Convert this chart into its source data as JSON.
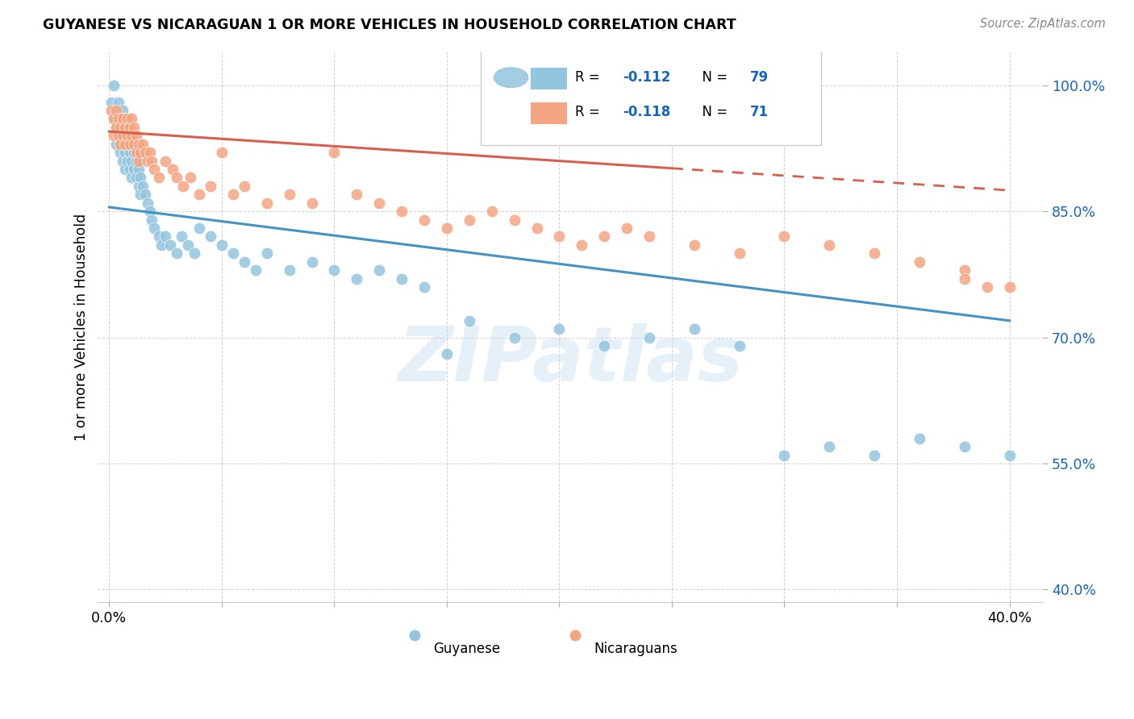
{
  "title": "GUYANESE VS NICARAGUAN 1 OR MORE VEHICLES IN HOUSEHOLD CORRELATION CHART",
  "source": "Source: ZipAtlas.com",
  "ylabel": "1 or more Vehicles in Household",
  "watermark": "ZIPatlas",
  "guyanese_color": "#92c5de",
  "nicaraguan_color": "#f4a582",
  "trendline_guyanese_color": "#4393c3",
  "trendline_nicaraguan_color": "#d6604d",
  "blue_label_color": "#1565C0",
  "legend_r1_r": "-0.112",
  "legend_r1_n": "79",
  "legend_r2_r": "-0.118",
  "legend_r2_n": "71",
  "guyanese_x": [
    0.001,
    0.002,
    0.002,
    0.003,
    0.003,
    0.003,
    0.004,
    0.004,
    0.004,
    0.005,
    0.005,
    0.005,
    0.006,
    0.006,
    0.006,
    0.006,
    0.007,
    0.007,
    0.007,
    0.007,
    0.008,
    0.008,
    0.008,
    0.009,
    0.009,
    0.009,
    0.01,
    0.01,
    0.01,
    0.011,
    0.011,
    0.012,
    0.012,
    0.013,
    0.013,
    0.014,
    0.014,
    0.015,
    0.016,
    0.017,
    0.018,
    0.019,
    0.02,
    0.022,
    0.023,
    0.025,
    0.027,
    0.03,
    0.032,
    0.035,
    0.038,
    0.04,
    0.045,
    0.05,
    0.055,
    0.06,
    0.065,
    0.07,
    0.08,
    0.09,
    0.1,
    0.11,
    0.12,
    0.13,
    0.14,
    0.15,
    0.16,
    0.18,
    0.2,
    0.22,
    0.24,
    0.26,
    0.28,
    0.3,
    0.32,
    0.34,
    0.36,
    0.38,
    0.4
  ],
  "guyanese_y": [
    0.98,
    1.0,
    0.96,
    0.97,
    0.95,
    0.93,
    0.98,
    0.96,
    0.94,
    0.96,
    0.94,
    0.92,
    0.97,
    0.95,
    0.93,
    0.91,
    0.96,
    0.94,
    0.92,
    0.9,
    0.95,
    0.93,
    0.91,
    0.94,
    0.92,
    0.9,
    0.93,
    0.91,
    0.89,
    0.92,
    0.9,
    0.91,
    0.89,
    0.9,
    0.88,
    0.89,
    0.87,
    0.88,
    0.87,
    0.86,
    0.85,
    0.84,
    0.83,
    0.82,
    0.81,
    0.82,
    0.81,
    0.8,
    0.82,
    0.81,
    0.8,
    0.83,
    0.82,
    0.81,
    0.8,
    0.79,
    0.78,
    0.8,
    0.78,
    0.79,
    0.78,
    0.77,
    0.78,
    0.77,
    0.76,
    0.68,
    0.72,
    0.7,
    0.71,
    0.69,
    0.7,
    0.71,
    0.69,
    0.56,
    0.57,
    0.56,
    0.58,
    0.57,
    0.56
  ],
  "nicaraguan_x": [
    0.001,
    0.002,
    0.002,
    0.003,
    0.003,
    0.004,
    0.004,
    0.005,
    0.005,
    0.006,
    0.006,
    0.007,
    0.007,
    0.008,
    0.008,
    0.009,
    0.009,
    0.01,
    0.01,
    0.011,
    0.011,
    0.012,
    0.012,
    0.013,
    0.013,
    0.014,
    0.015,
    0.016,
    0.017,
    0.018,
    0.019,
    0.02,
    0.022,
    0.025,
    0.028,
    0.03,
    0.033,
    0.036,
    0.04,
    0.045,
    0.05,
    0.055,
    0.06,
    0.07,
    0.08,
    0.09,
    0.1,
    0.11,
    0.12,
    0.13,
    0.14,
    0.15,
    0.16,
    0.17,
    0.18,
    0.19,
    0.2,
    0.21,
    0.22,
    0.23,
    0.24,
    0.26,
    0.28,
    0.3,
    0.32,
    0.34,
    0.36,
    0.38,
    0.4,
    0.38,
    0.39
  ],
  "nicaraguan_y": [
    0.97,
    0.96,
    0.94,
    0.97,
    0.95,
    0.96,
    0.94,
    0.95,
    0.93,
    0.96,
    0.94,
    0.95,
    0.93,
    0.96,
    0.94,
    0.95,
    0.93,
    0.96,
    0.94,
    0.95,
    0.93,
    0.94,
    0.92,
    0.93,
    0.91,
    0.92,
    0.93,
    0.92,
    0.91,
    0.92,
    0.91,
    0.9,
    0.89,
    0.91,
    0.9,
    0.89,
    0.88,
    0.89,
    0.87,
    0.88,
    0.92,
    0.87,
    0.88,
    0.86,
    0.87,
    0.86,
    0.92,
    0.87,
    0.86,
    0.85,
    0.84,
    0.83,
    0.84,
    0.85,
    0.84,
    0.83,
    0.82,
    0.81,
    0.82,
    0.83,
    0.82,
    0.81,
    0.8,
    0.82,
    0.81,
    0.8,
    0.79,
    0.78,
    0.76,
    0.77,
    0.76
  ],
  "xlim": [
    -0.005,
    0.415
  ],
  "ylim": [
    0.385,
    1.04
  ],
  "ytick_vals": [
    0.4,
    0.55,
    0.7,
    0.85,
    1.0
  ],
  "ytick_labels": [
    "40.0%",
    "55.0%",
    "70.0%",
    "85.0%",
    "100.0%"
  ],
  "xtick_vals": [
    0.0,
    0.05,
    0.1,
    0.15,
    0.2,
    0.25,
    0.3,
    0.35,
    0.4
  ],
  "xtick_labels": [
    "0.0%",
    "",
    "",
    "",
    "",
    "",
    "",
    "",
    "40.0%"
  ]
}
